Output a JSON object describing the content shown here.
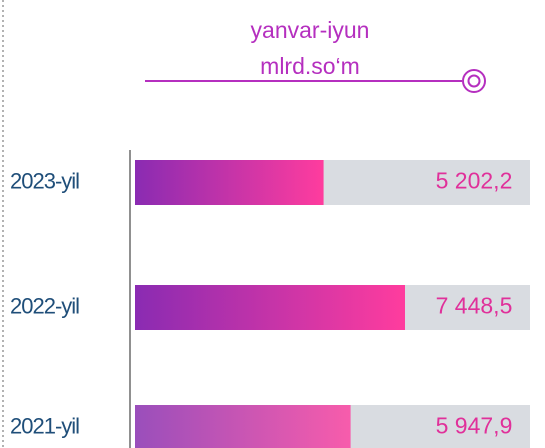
{
  "chart_data": {
    "type": "bar",
    "orientation": "horizontal",
    "title": "yanvar-iyun",
    "subtitle": "mlrd.so‘m",
    "categories": [
      "2023-yil",
      "2022-yil",
      "2021-yil"
    ],
    "values": [
      5202.2,
      7448.5,
      5947.9
    ],
    "value_labels": [
      "5 202,2",
      "7 448,5",
      "5 947,9"
    ],
    "color": "#e0309a"
  }
}
